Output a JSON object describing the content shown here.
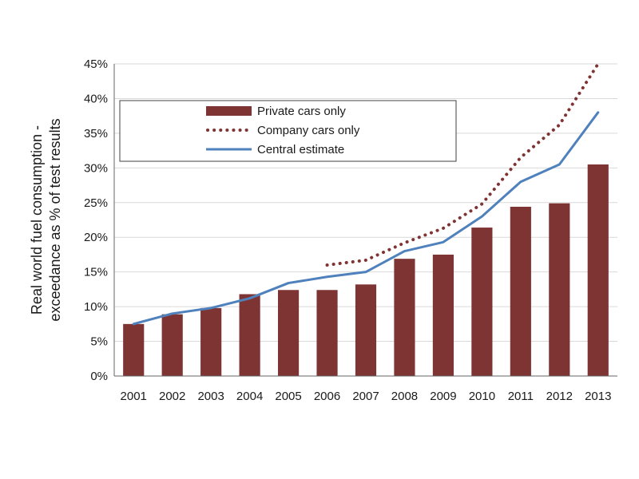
{
  "chart_data": {
    "type": "bar",
    "title": "",
    "xlabel": "",
    "ylabel_lines": [
      "Real world fuel consumption -",
      "exceedance as % of test results"
    ],
    "ylim": [
      0,
      45
    ],
    "yticks": [
      0,
      5,
      10,
      15,
      20,
      25,
      30,
      35,
      40,
      45
    ],
    "ytick_labels": [
      "0%",
      "5%",
      "10%",
      "15%",
      "20%",
      "25%",
      "30%",
      "35%",
      "40%",
      "45%"
    ],
    "grid": true,
    "legend_position": "top-left",
    "categories": [
      "2001",
      "2002",
      "2003",
      "2004",
      "2005",
      "2006",
      "2007",
      "2008",
      "2009",
      "2010",
      "2011",
      "2012",
      "2013"
    ],
    "series": [
      {
        "name": "Private cars only",
        "type": "bar",
        "color": "#7f3434",
        "values": [
          7.5,
          8.9,
          9.8,
          11.8,
          12.4,
          12.4,
          13.2,
          16.9,
          17.5,
          21.4,
          24.4,
          24.9,
          30.5
        ]
      },
      {
        "name": "Company cars only",
        "type": "line",
        "style": "dotted",
        "color": "#7f3434",
        "values": [
          null,
          null,
          null,
          null,
          null,
          16.0,
          16.7,
          19.2,
          21.3,
          24.8,
          31.5,
          36.2,
          45.0
        ]
      },
      {
        "name": "Central estimate",
        "type": "line",
        "style": "solid",
        "color": "#4f81bd",
        "values": [
          7.5,
          9.0,
          9.8,
          11.2,
          13.4,
          14.3,
          15.0,
          18.0,
          19.3,
          23.0,
          28.0,
          30.5,
          38.0
        ]
      }
    ]
  }
}
